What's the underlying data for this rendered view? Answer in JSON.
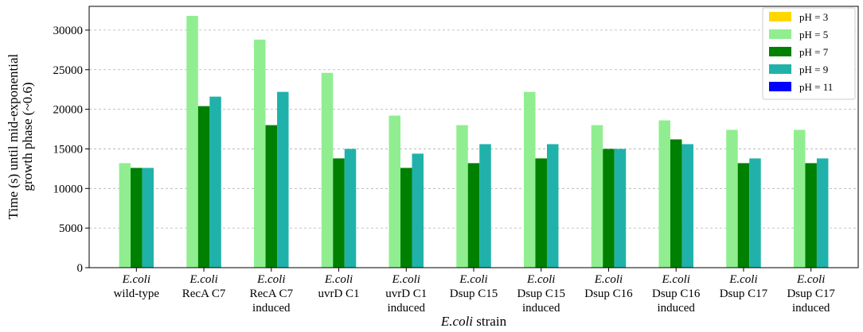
{
  "chart_data": {
    "type": "bar",
    "title": "",
    "xlabel_italic": "E.coli",
    "xlabel_rest": " strain",
    "ylabel_line1": "Time (s) until mid-exponential",
    "ylabel_line2": "growth phase (~0.6)",
    "ylim": [
      0,
      33000
    ],
    "yticks": [
      0,
      5000,
      10000,
      15000,
      20000,
      25000,
      30000
    ],
    "grid": "y-dashed",
    "legend_position": "top-right",
    "categories": [
      {
        "italic": "E.coli",
        "line2": "wild-type",
        "line3": ""
      },
      {
        "italic": "E.coli",
        "line2": "RecA C7",
        "line3": ""
      },
      {
        "italic": "E.coli",
        "line2": "RecA C7",
        "line3": "induced"
      },
      {
        "italic": "E.coli",
        "line2": "uvrD C1",
        "line3": ""
      },
      {
        "italic": "E.coli",
        "line2": "uvrD C1",
        "line3": "induced"
      },
      {
        "italic": "E.coli",
        "line2": "Dsup C15",
        "line3": ""
      },
      {
        "italic": "E.coli",
        "line2": "Dsup C15",
        "line3": "induced"
      },
      {
        "italic": "E.coli",
        "line2": "Dsup C16",
        "line3": ""
      },
      {
        "italic": "E.coli",
        "line2": "Dsup C16",
        "line3": "induced"
      },
      {
        "italic": "E.coli",
        "line2": "Dsup C17",
        "line3": ""
      },
      {
        "italic": "E.coli",
        "line2": "Dsup C17",
        "line3": "induced"
      }
    ],
    "series": [
      {
        "name": "pH = 3",
        "color": "#ffd700",
        "values": [
          0,
          0,
          0,
          0,
          0,
          0,
          0,
          0,
          0,
          0,
          0
        ]
      },
      {
        "name": "pH = 5",
        "color": "#90ee90",
        "values": [
          13200,
          31800,
          28800,
          24600,
          19200,
          18000,
          22200,
          18000,
          18600,
          17400,
          17400
        ]
      },
      {
        "name": "pH = 7",
        "color": "#008000",
        "values": [
          12600,
          20400,
          18000,
          13800,
          12600,
          13200,
          13800,
          15000,
          16200,
          13200,
          13200
        ]
      },
      {
        "name": "pH = 9",
        "color": "#20b2aa",
        "values": [
          12600,
          21600,
          22200,
          15000,
          14400,
          15600,
          15600,
          15000,
          15600,
          13800,
          13800
        ]
      },
      {
        "name": "pH = 11",
        "color": "#0000ff",
        "values": [
          0,
          0,
          0,
          0,
          0,
          0,
          0,
          0,
          0,
          0,
          0
        ]
      }
    ]
  }
}
